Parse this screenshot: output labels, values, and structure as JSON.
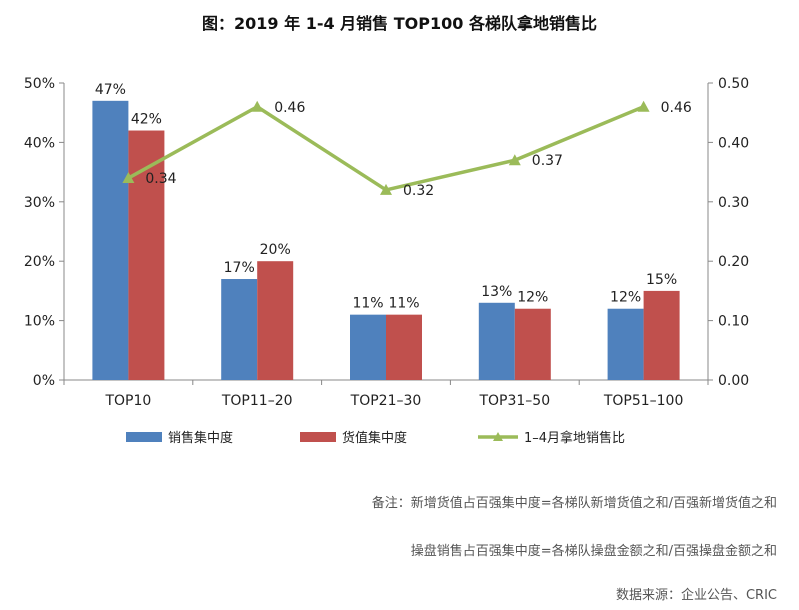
{
  "title": "图：2019 年 1-4 月销售 TOP100 各梯队拿地销售比",
  "notes": {
    "line1": "备注：新增货值占百强集中度=各梯队新增货值之和/百强新增货值之和",
    "line2": "操盘销售占百强集中度=各梯队操盘金额之和/百强操盘金额之和",
    "source": "数据来源：企业公告、CRIC"
  },
  "chart_data": {
    "type": "bar",
    "categories": [
      "TOP10",
      "TOP11–20",
      "TOP21–30",
      "TOP31–50",
      "TOP51–100"
    ],
    "series": [
      {
        "name": "销售集中度",
        "kind": "bar",
        "axis": "left",
        "color": "#4F81BD",
        "values": [
          47,
          17,
          11,
          13,
          12
        ],
        "labels": [
          "47%",
          "17%",
          "11%",
          "13%",
          "12%"
        ]
      },
      {
        "name": "货值集中度",
        "kind": "bar",
        "axis": "left",
        "color": "#C0504D",
        "values": [
          42,
          20,
          11,
          12,
          15
        ],
        "labels": [
          "42%",
          "20%",
          "11%",
          "12%",
          "15%"
        ]
      },
      {
        "name": "1–4月拿地销售比",
        "kind": "line",
        "axis": "right",
        "color": "#9BBB59",
        "values": [
          0.34,
          0.46,
          0.32,
          0.37,
          0.46
        ],
        "labels": [
          "0.34",
          "0.46",
          "0.32",
          "0.37",
          "0.46"
        ]
      }
    ],
    "y_left": {
      "min": 0,
      "max": 50,
      "ticks": [
        "0%",
        "10%",
        "20%",
        "30%",
        "40%",
        "50%"
      ]
    },
    "y_right": {
      "min": 0,
      "max": 0.5,
      "ticks": [
        "0.00",
        "0.10",
        "0.20",
        "0.30",
        "0.40",
        "0.50"
      ]
    },
    "grid": false,
    "legend_position": "bottom"
  }
}
